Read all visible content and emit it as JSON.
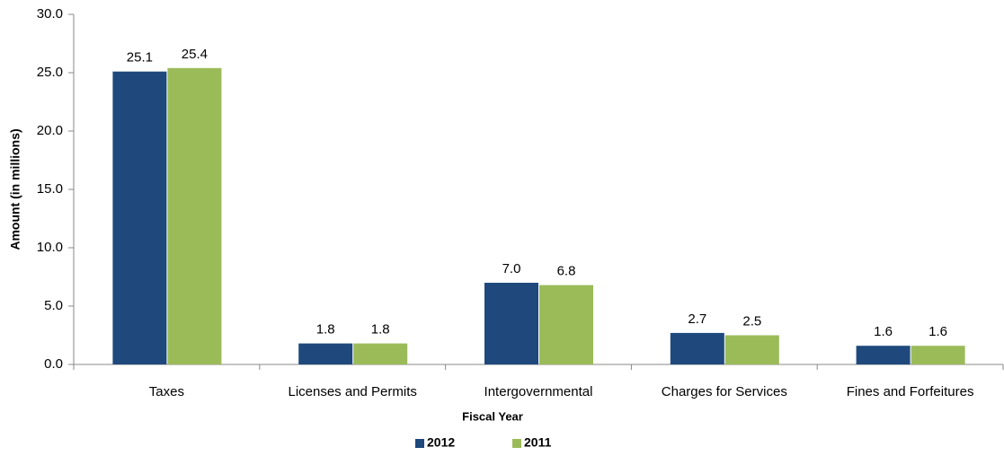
{
  "chart_data": {
    "type": "bar",
    "x_label": "Fiscal Year",
    "y_label": "Amount (in millions)",
    "categories": [
      "Taxes",
      "Licenses and Permits",
      "Intergovernmental",
      "Charges for Services",
      "Fines and Forfeitures"
    ],
    "series": [
      {
        "name": "2012",
        "color": "#1f497d",
        "values": [
          25.1,
          1.8,
          7.0,
          2.7,
          1.6
        ],
        "value_labels": [
          "25.1",
          "1.8",
          "7.0",
          "2.7",
          "1.6"
        ]
      },
      {
        "name": "2011",
        "color": "#9bbb59",
        "values": [
          25.4,
          1.8,
          6.8,
          2.5,
          1.6
        ],
        "value_labels": [
          "25.4",
          "1.8",
          "6.8",
          "2.5",
          "1.6"
        ]
      }
    ],
    "ylim": [
      0,
      30
    ],
    "yticks": [
      {
        "value": 0,
        "label": "0.0"
      },
      {
        "value": 5,
        "label": "5.0"
      },
      {
        "value": 10,
        "label": "10.0"
      },
      {
        "value": 15,
        "label": "15.0"
      },
      {
        "value": 20,
        "label": "20.0"
      },
      {
        "value": 25,
        "label": "25.0"
      },
      {
        "value": 30,
        "label": "30.0"
      }
    ],
    "grid": false,
    "legend": "bottom"
  }
}
